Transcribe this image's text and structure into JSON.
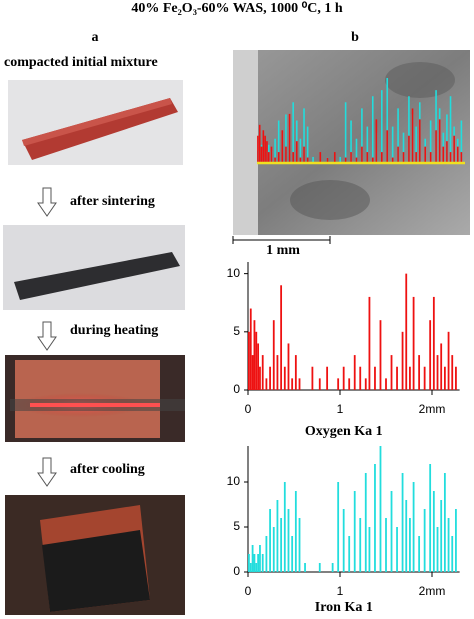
{
  "title": "40% Fe₂O₃-60% WAS, 1000 ⁰C, 1 h",
  "panel_a": {
    "label": "a",
    "steps": [
      "compacted initial mixture",
      "after sintering",
      "during heating",
      "after cooling"
    ]
  },
  "panel_b": {
    "label": "b",
    "scale_bar": "1 mm"
  },
  "chart_data": [
    {
      "type": "bar",
      "title": "Oxygen Ka 1",
      "color": "#ee1111",
      "x": [
        0.01,
        0.03,
        0.05,
        0.07,
        0.09,
        0.11,
        0.13,
        0.16,
        0.2,
        0.24,
        0.28,
        0.32,
        0.36,
        0.4,
        0.44,
        0.48,
        0.52,
        0.56,
        0.62,
        0.7,
        0.78,
        0.86,
        0.92,
        0.98,
        1.04,
        1.1,
        1.16,
        1.22,
        1.28,
        1.32,
        1.38,
        1.44,
        1.5,
        1.56,
        1.62,
        1.68,
        1.72,
        1.76,
        1.8,
        1.86,
        1.92,
        1.98,
        2.02,
        2.06,
        2.1,
        2.14,
        2.18,
        2.22,
        2.26
      ],
      "values": [
        5,
        7,
        3,
        6,
        5,
        4,
        2,
        3,
        1,
        2,
        6,
        3,
        9,
        2,
        4,
        1,
        3,
        1,
        0,
        2,
        1,
        2,
        0,
        1,
        2,
        1,
        3,
        2,
        1,
        8,
        2,
        6,
        1,
        3,
        2,
        5,
        10,
        2,
        8,
        3,
        2,
        6,
        8,
        3,
        4,
        2,
        5,
        3,
        2
      ],
      "xlim": [
        0,
        2.3
      ],
      "ylim": [
        0,
        11
      ],
      "xticks": [
        0,
        1,
        {
          "value": 2,
          "label": "2mm"
        }
      ],
      "yticks": [
        0,
        5,
        10
      ]
    },
    {
      "type": "bar",
      "title": "Iron Ka 1",
      "color": "#22dddd",
      "x": [
        0.01,
        0.03,
        0.05,
        0.07,
        0.09,
        0.11,
        0.13,
        0.16,
        0.2,
        0.24,
        0.28,
        0.32,
        0.36,
        0.4,
        0.44,
        0.48,
        0.52,
        0.56,
        0.62,
        0.7,
        0.78,
        0.86,
        0.92,
        0.98,
        1.04,
        1.1,
        1.16,
        1.22,
        1.28,
        1.32,
        1.38,
        1.44,
        1.5,
        1.56,
        1.62,
        1.68,
        1.72,
        1.76,
        1.8,
        1.86,
        1.92,
        1.98,
        2.02,
        2.06,
        2.1,
        2.14,
        2.18,
        2.22,
        2.26
      ],
      "values": [
        2,
        1,
        3,
        2,
        1,
        2,
        3,
        2,
        4,
        7,
        5,
        8,
        6,
        10,
        7,
        4,
        9,
        6,
        1,
        0,
        1,
        0,
        1,
        10,
        7,
        4,
        9,
        6,
        11,
        5,
        12,
        14,
        6,
        9,
        5,
        11,
        8,
        6,
        10,
        4,
        7,
        12,
        9,
        5,
        8,
        11,
        6,
        4,
        7
      ],
      "xlim": [
        0,
        2.3
      ],
      "ylim": [
        0,
        14
      ],
      "xticks": [
        0,
        1,
        {
          "value": 2,
          "label": "2mm"
        }
      ],
      "yticks": [
        0,
        5,
        10
      ]
    }
  ]
}
